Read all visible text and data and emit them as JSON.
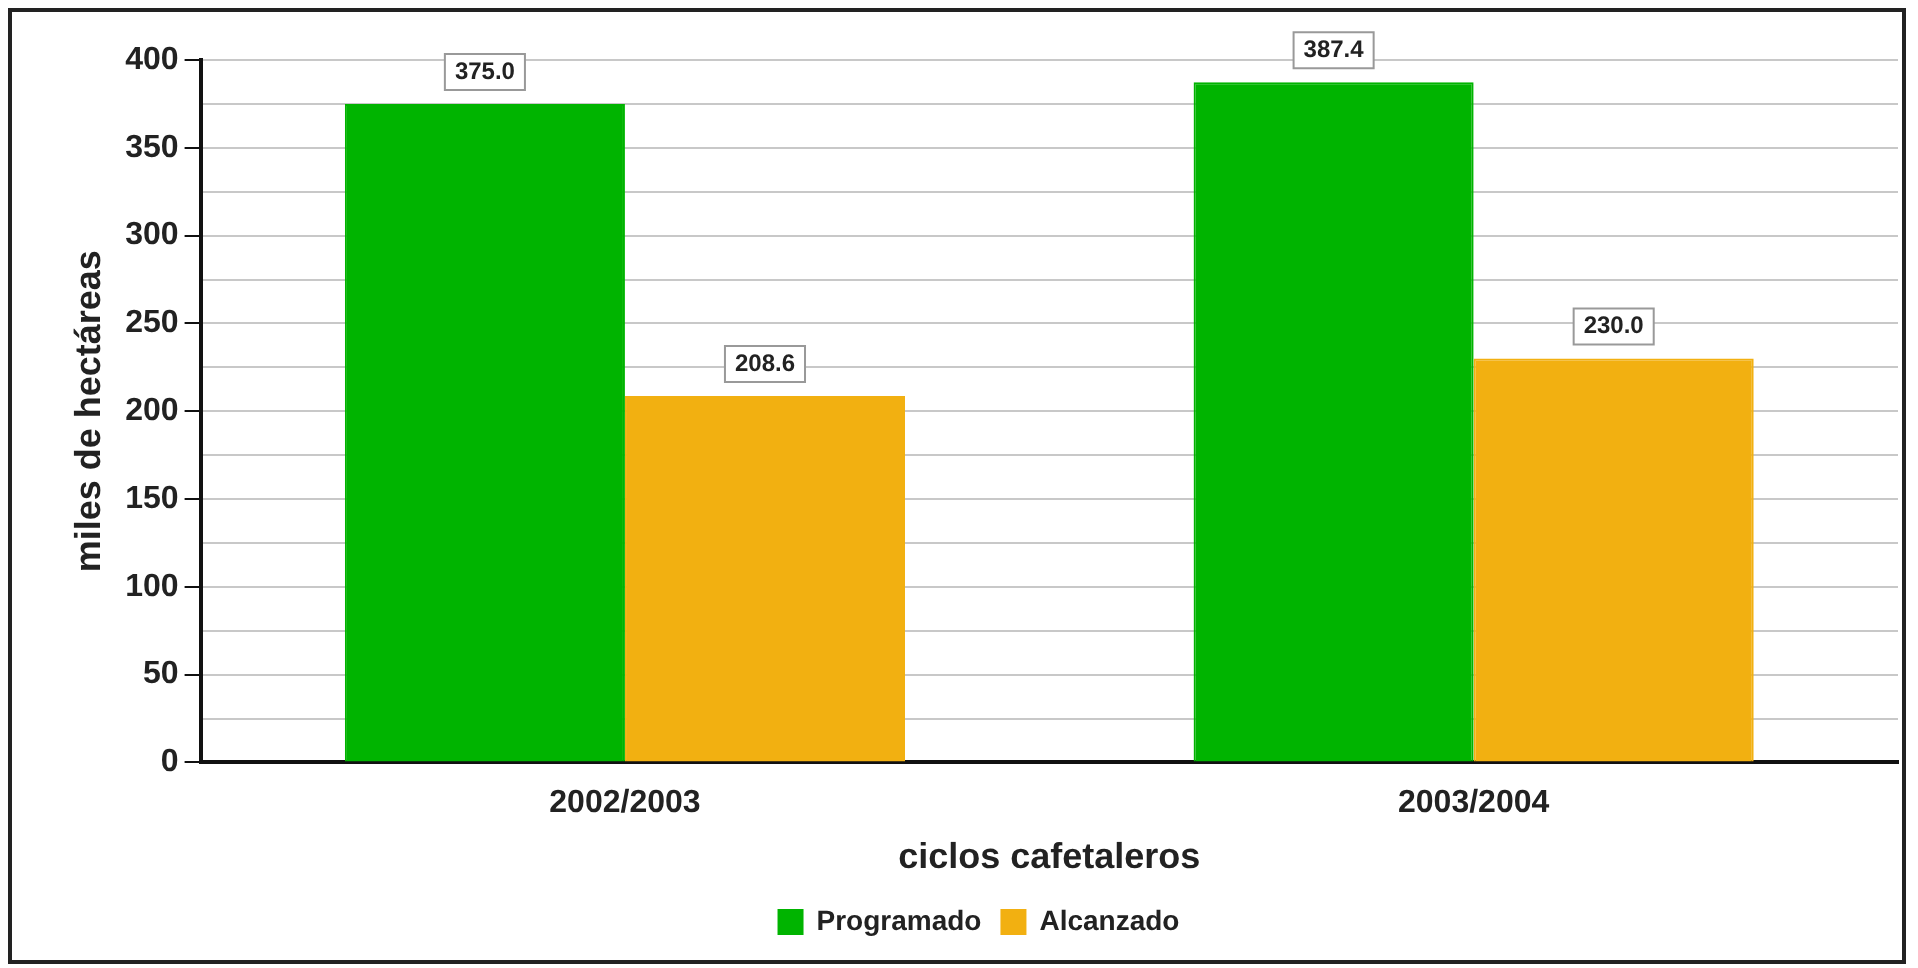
{
  "chart_data": {
    "type": "bar",
    "xlabel": "ciclos cafetaleros",
    "ylabel": "miles de hectáreas",
    "categories": [
      "2002/2003",
      "2003/2004"
    ],
    "series": [
      {
        "name": "Programado",
        "color": "#00b400",
        "values": [
          375.0,
          387.4
        ],
        "value_labels": [
          "375.0",
          "387.4"
        ]
      },
      {
        "name": "Alcanzado",
        "color": "#f2b011",
        "values": [
          208.6,
          230.0
        ],
        "value_labels": [
          "208.6",
          "230.0"
        ]
      }
    ],
    "ylim": [
      0,
      400
    ],
    "yticks": [
      0,
      {
        "value": 25,
        "label": null
      },
      50,
      {
        "value": 75,
        "label": null
      },
      100,
      {
        "value": 125,
        "label": null
      },
      150,
      {
        "value": 175,
        "label": null
      },
      200,
      {
        "value": 225,
        "label": null
      },
      250,
      {
        "value": 275,
        "label": null
      },
      300,
      {
        "value": 325,
        "label": null
      },
      350,
      {
        "value": 375,
        "label": null
      },
      400
    ],
    "grid": "y",
    "legend": "bottom"
  }
}
